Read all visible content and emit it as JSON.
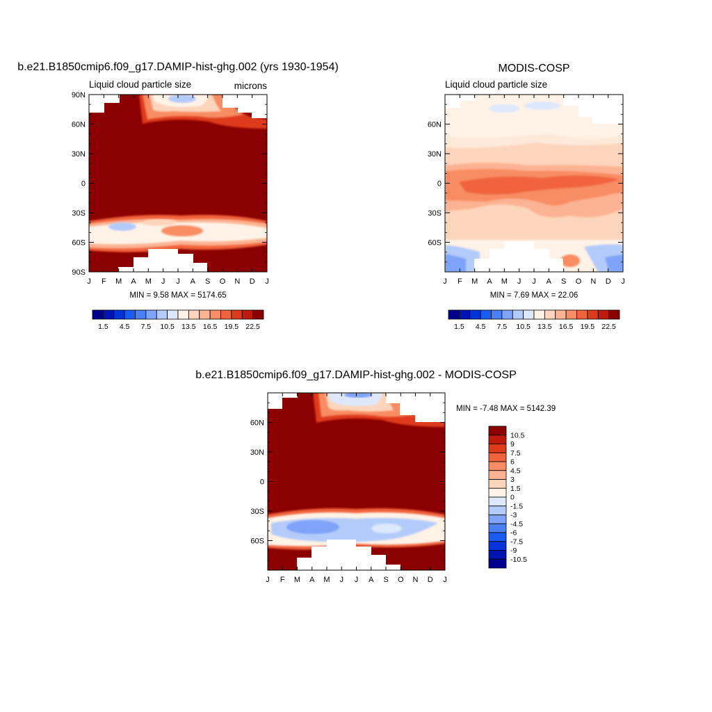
{
  "page": {
    "background": "#ffffff"
  },
  "chart_data": [
    {
      "type": "heatmap",
      "title": "b.e21.B1850cmip6.f09_g17.DAMIP-hist-ghg.002 (yrs 1930-1954)",
      "subtitle": "Liquid cloud particle size",
      "units": "microns",
      "x_ticks": [
        "J",
        "F",
        "M",
        "A",
        "M",
        "J",
        "J",
        "A",
        "S",
        "O",
        "N",
        "D",
        "J"
      ],
      "y_ticks": [
        "90N",
        "60N",
        "30N",
        "0",
        "30S",
        "60S",
        "90S"
      ],
      "ylim": [
        -90,
        90
      ],
      "stats": "MIN =   9.58 MAX = 5174.65",
      "colorbar": {
        "orientation": "horizontal",
        "labels": [
          "1.5",
          "4.5",
          "7.5",
          "10.5",
          "13.5",
          "16.5",
          "19.5",
          "22.5"
        ],
        "colors": [
          "#00008f",
          "#0014b4",
          "#0033d9",
          "#1a5cf0",
          "#4a7ff5",
          "#7ea3f8",
          "#b3cbfb",
          "#dde8fd",
          "#fff2e6",
          "#fdd5bc",
          "#fcb393",
          "#f88c63",
          "#f0633d",
          "#de3b1c",
          "#bf1b0c",
          "#8b0000"
        ]
      },
      "field": {
        "lat": [
          88,
          80,
          70,
          62,
          50,
          35,
          20,
          0,
          -20,
          -30,
          -37,
          -42,
          -52,
          -58,
          -65,
          -75,
          -88
        ],
        "months": [
          "J",
          "F",
          "M",
          "A",
          "M",
          "J",
          "J",
          "A",
          "S",
          "O",
          "N",
          "D",
          "J"
        ],
        "bands": [
          {
            "lat_range": [
              -25,
              60
            ],
            "value": 5000
          },
          {
            "lat_range": [
              -37,
              -25
            ],
            "value": 5000
          },
          {
            "lat_range": [
              -64,
              -37
            ],
            "value": 13
          },
          {
            "lat_range": [
              -90,
              -64
            ],
            "value": 5000
          },
          {
            "lat_range": [
              60,
              90
            ],
            "value": 5000
          }
        ]
      }
    },
    {
      "type": "heatmap",
      "title": "MODIS-COSP",
      "subtitle": "Liquid cloud particle size",
      "x_ticks": [
        "J",
        "F",
        "M",
        "A",
        "M",
        "J",
        "J",
        "A",
        "S",
        "O",
        "N",
        "D",
        "J"
      ],
      "y_ticks": [
        "",
        "60N",
        "30N",
        "0",
        "30S",
        "60S",
        ""
      ],
      "ylim": [
        -90,
        90
      ],
      "stats": "MIN =   7.69 MAX =  22.06",
      "colorbar": {
        "orientation": "horizontal",
        "labels": [
          "1.5",
          "4.5",
          "7.5",
          "10.5",
          "13.5",
          "16.5",
          "19.5",
          "22.5"
        ],
        "colors": [
          "#00008f",
          "#0014b4",
          "#0033d9",
          "#1a5cf0",
          "#4a7ff5",
          "#7ea3f8",
          "#b3cbfb",
          "#dde8fd",
          "#fff2e6",
          "#fdd5bc",
          "#fcb393",
          "#f88c63",
          "#f0633d",
          "#de3b1c",
          "#bf1b0c",
          "#8b0000"
        ]
      }
    },
    {
      "type": "heatmap",
      "title": "b.e21.B1850cmip6.f09_g17.DAMIP-hist-ghg.002 - MODIS-COSP",
      "x_ticks": [
        "J",
        "F",
        "M",
        "A",
        "M",
        "J",
        "J",
        "A",
        "S",
        "O",
        "N",
        "D",
        "J"
      ],
      "y_ticks": [
        "",
        "60N",
        "30N",
        "0",
        "30S",
        "60S",
        ""
      ],
      "ylim": [
        -90,
        90
      ],
      "stats": "MIN =  -7.48 MAX = 5142.39",
      "colorbar": {
        "orientation": "vertical",
        "labels": [
          "10.5",
          "9",
          "7.5",
          "6",
          "4.5",
          "3",
          "1.5",
          "0",
          "-1.5",
          "-3",
          "-4.5",
          "-6",
          "-7.5",
          "-9",
          "-10.5"
        ],
        "colors": [
          "#8b0000",
          "#bf1b0c",
          "#de3b1c",
          "#f0633d",
          "#f88c63",
          "#fcb393",
          "#fdd5bc",
          "#fff2e6",
          "#dde8fd",
          "#b3cbfb",
          "#7ea3f8",
          "#4a7ff5",
          "#1a5cf0",
          "#0033d9",
          "#0014b4",
          "#00008f"
        ]
      }
    }
  ]
}
